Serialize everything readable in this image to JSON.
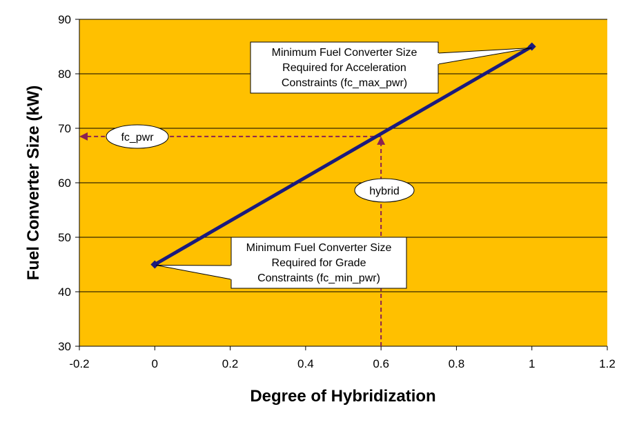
{
  "chart_data": {
    "type": "line",
    "xlabel": "Degree of Hybridization",
    "ylabel": "Fuel Converter Size (kW)",
    "xlim": [
      -0.2,
      1.2
    ],
    "ylim": [
      30,
      90
    ],
    "x_ticks": [
      "-0.2",
      "0",
      "0.2",
      "0.4",
      "0.6",
      "0.8",
      "1",
      "1.2"
    ],
    "y_ticks": [
      "30",
      "40",
      "50",
      "60",
      "70",
      "80",
      "90"
    ],
    "grid": "horizontal",
    "series": [
      {
        "x": [
          0,
          1
        ],
        "y": [
          45,
          85
        ]
      }
    ],
    "guide": {
      "x": 0.6,
      "y": 68.5
    },
    "annotations": {
      "max": [
        "Minimum Fuel Converter Size",
        "Required for Acceleration",
        "Constraints (fc_max_pwr)"
      ],
      "min": [
        "Minimum Fuel Converter Size",
        "Required for Grade",
        "Constraints (fc_min_pwr)"
      ],
      "fc_pwr": "fc_pwr",
      "hybrid": "hybrid"
    },
    "colors": {
      "plot_bg": "#FFC000",
      "line": "#1A1A7E",
      "guide": "#8B2252",
      "grid": "#000000"
    }
  }
}
